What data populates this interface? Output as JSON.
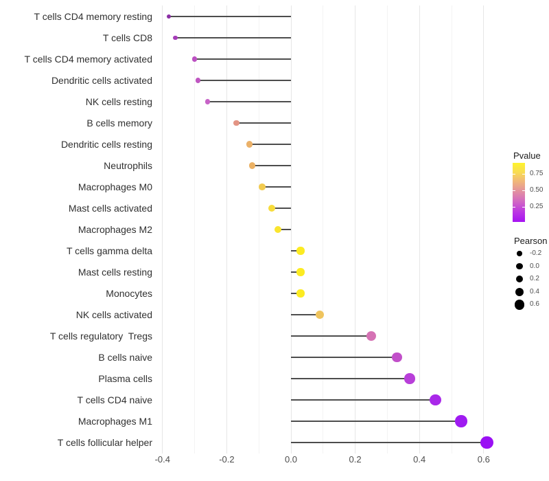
{
  "chart_data": {
    "type": "lollipop",
    "title": "",
    "xlabel": "",
    "ylabel": "",
    "grid": "vertical-only",
    "xlim": [
      -0.42,
      0.63
    ],
    "x_tick_values": [
      -0.4,
      -0.2,
      0.0,
      0.2,
      0.4,
      0.6
    ],
    "x_tick_labels": [
      "-0.4",
      "-0.2",
      "0.0",
      "0.2",
      "0.4",
      "0.6"
    ],
    "x_minor_grid_values": [
      -0.3,
      -0.1,
      0.1,
      0.3,
      0.5
    ],
    "rows": [
      {
        "label": "T cells CD4 memory resting",
        "pearson": -0.38,
        "color": "#8B2FA5"
      },
      {
        "label": "T cells CD8",
        "pearson": -0.36,
        "color": "#A53CB8"
      },
      {
        "label": "T cells CD4 memory activated",
        "pearson": -0.3,
        "color": "#BC50C2"
      },
      {
        "label": "Dendritic cells activated",
        "pearson": -0.29,
        "color": "#BF56C1"
      },
      {
        "label": "NK cells resting",
        "pearson": -0.26,
        "color": "#C763C7"
      },
      {
        "label": "B cells memory",
        "pearson": -0.17,
        "color": "#E39484"
      },
      {
        "label": "Dendritic cells resting",
        "pearson": -0.13,
        "color": "#EBB169"
      },
      {
        "label": "Neutrophils",
        "pearson": -0.12,
        "color": "#EBB164"
      },
      {
        "label": "Macrophages M0",
        "pearson": -0.09,
        "color": "#F2CB50"
      },
      {
        "label": "Mast cells activated",
        "pearson": -0.06,
        "color": "#F7DC3C"
      },
      {
        "label": "Macrophages M2",
        "pearson": -0.04,
        "color": "#FAE52E"
      },
      {
        "label": "T cells gamma delta",
        "pearson": 0.03,
        "color": "#FCEB22"
      },
      {
        "label": "Mast cells resting",
        "pearson": 0.03,
        "color": "#FCEB22"
      },
      {
        "label": "Monocytes",
        "pearson": 0.03,
        "color": "#FCEB22"
      },
      {
        "label": "NK cells activated",
        "pearson": 0.09,
        "color": "#EFC45E"
      },
      {
        "label": "T cells regulatory  Tregs",
        "pearson": 0.25,
        "color": "#D572B4"
      },
      {
        "label": "B cells naive",
        "pearson": 0.33,
        "color": "#C14FC9"
      },
      {
        "label": "Plasma cells",
        "pearson": 0.37,
        "color": "#B83FD9"
      },
      {
        "label": "T cells CD4 naive",
        "pearson": 0.45,
        "color": "#A928E9"
      },
      {
        "label": "Macrophages M1",
        "pearson": 0.53,
        "color": "#9F1BF1"
      },
      {
        "label": "T cells follicular helper",
        "pearson": 0.61,
        "color": "#9A10F4"
      }
    ],
    "legend_pvalue": {
      "title": "Pvalue",
      "tick_labels": [
        "0.75",
        "0.50",
        "0.25"
      ],
      "tick_values": [
        0.75,
        0.5,
        0.25
      ],
      "bar_value_range": [
        0.92,
        0.02
      ],
      "gradient_top_to_bottom": [
        "#FEF42C",
        "#F8DA55",
        "#EFB27E",
        "#E18CA4",
        "#D065C6",
        "#BB36E3",
        "#A613F2"
      ]
    },
    "legend_pearson": {
      "title": "Pearson",
      "items": [
        {
          "label": "-0.2",
          "diameter": 7.4
        },
        {
          "label": "0.0",
          "diameter": 9.4
        },
        {
          "label": "0.2",
          "diameter": 10.6
        },
        {
          "label": "0.4",
          "diameter": 12.6
        },
        {
          "label": "0.6",
          "diameter": 14.6
        }
      ],
      "legend_note": "dot size encodes Pearson correlation"
    }
  }
}
